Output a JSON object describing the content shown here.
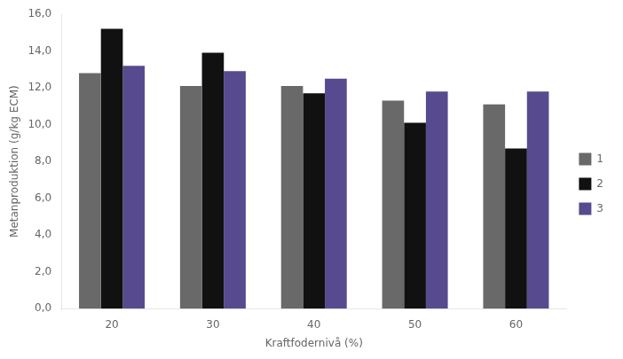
{
  "chart_data": {
    "type": "bar",
    "categories": [
      "20",
      "30",
      "40",
      "50",
      "60"
    ],
    "series": [
      {
        "name": "1",
        "color": "#696969",
        "values": [
          12.8,
          12.1,
          12.1,
          11.3,
          11.1
        ]
      },
      {
        "name": "2",
        "color": "#111111",
        "values": [
          15.2,
          13.9,
          11.7,
          10.1,
          8.7
        ]
      },
      {
        "name": "3",
        "color": "#584a8f",
        "values": [
          13.2,
          12.9,
          12.5,
          11.8,
          11.8
        ]
      }
    ],
    "xlabel": "Kraftfodernivå (%)",
    "ylabel": "Metanproduktion (g/kg ECM)",
    "ylim": [
      0,
      16
    ],
    "yticks": [
      {
        "value": 0,
        "label": "0,0"
      },
      {
        "value": 2,
        "label": "2,0"
      },
      {
        "value": 4,
        "label": "4,0"
      },
      {
        "value": 6,
        "label": "6,0"
      },
      {
        "value": 8,
        "label": "8,0"
      },
      {
        "value": 10,
        "label": "10,0"
      },
      {
        "value": 12,
        "label": "12,0"
      },
      {
        "value": 14,
        "label": "14,0"
      },
      {
        "value": 16,
        "label": "16,0"
      }
    ],
    "grid": false,
    "legend": "right"
  }
}
